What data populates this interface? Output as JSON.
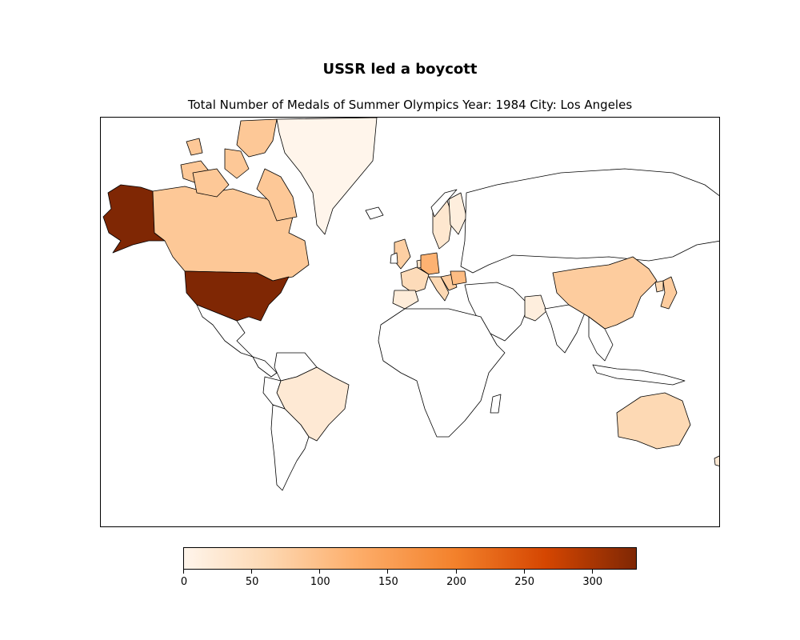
{
  "title": "USSR led a boycott",
  "subtitle": "Total Number of Medals of Summer Olympics  Year: 1984  City: Los Angeles",
  "colorbar": {
    "min": 0,
    "max": 333,
    "ticks": [
      "0",
      "50",
      "100",
      "150",
      "200",
      "250",
      "300"
    ],
    "tick_values": [
      0,
      50,
      100,
      150,
      200,
      250,
      300
    ]
  },
  "colors": {
    "low": "#fff5eb",
    "mid": "#fdae6b",
    "high": "#7f2704",
    "outline": "#000000"
  },
  "chart_data": {
    "type": "heatmap",
    "map": "world choropleth",
    "countries": [
      {
        "name": "United States",
        "value": 333
      },
      {
        "name": "Alaska (US)",
        "value": 333
      },
      {
        "name": "Canada",
        "value": 86
      },
      {
        "name": "Greenland",
        "value": 0
      },
      {
        "name": "West Germany",
        "value": 120
      },
      {
        "name": "Romania",
        "value": 105
      },
      {
        "name": "China",
        "value": 80
      },
      {
        "name": "Japan",
        "value": 80
      },
      {
        "name": "Italy",
        "value": 60
      },
      {
        "name": "France",
        "value": 55
      },
      {
        "name": "United Kingdom",
        "value": 75
      },
      {
        "name": "Australia",
        "value": 60
      },
      {
        "name": "Brazil",
        "value": 25
      },
      {
        "name": "Sweden",
        "value": 30
      },
      {
        "name": "Spain",
        "value": 20
      },
      {
        "name": "Finland",
        "value": 15
      },
      {
        "name": "Pakistan",
        "value": 15
      },
      {
        "name": "Netherlands",
        "value": 35
      },
      {
        "name": "South Korea",
        "value": 60
      },
      {
        "name": "New Zealand",
        "value": 25
      },
      {
        "name": "Yugoslavia",
        "value": 80
      }
    ]
  }
}
